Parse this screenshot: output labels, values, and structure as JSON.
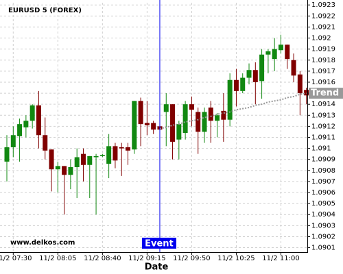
{
  "chart_data": {
    "type": "candlestick",
    "title": "EURUSD 5 (FOREX)",
    "watermark": "www.delkos.com",
    "x_label": "Date",
    "categories": [
      null,
      "11/2 07:30",
      null,
      null,
      null,
      null,
      null,
      null,
      "11/2 08:05",
      null,
      null,
      null,
      null,
      null,
      null,
      "11/2 08:40",
      null,
      null,
      null,
      null,
      null,
      null,
      "11/2 09:15",
      null,
      null,
      null,
      null,
      null,
      null,
      "11/2 09:50",
      null,
      null,
      null,
      null,
      null,
      null,
      "11/2 10:25",
      null,
      null,
      null,
      null,
      null,
      null,
      "11/2 11:00",
      null,
      null,
      null,
      null
    ],
    "open": [
      1.09088,
      1.09101,
      1.09111,
      1.09119,
      1.09125,
      1.09139,
      1.09112,
      1.09099,
      1.09081,
      1.09084,
      1.09076,
      1.09083,
      1.09095,
      1.09085,
      1.09092,
      1.09093,
      1.09086,
      1.09102,
      1.09101,
      1.09101,
      1.09099,
      1.09143,
      1.09123,
      1.09123,
      1.0912,
      1.09133,
      1.0914,
      1.09108,
      1.09114,
      1.0914,
      1.09133,
      1.09115,
      1.09137,
      1.09125,
      1.09134,
      1.09126,
      1.09162,
      1.09152,
      1.09164,
      1.09171,
      1.09161,
      1.09185,
      1.09181,
      1.09189,
      1.09194,
      1.0918,
      1.09167,
      1.09153
    ],
    "high": [
      1.09112,
      1.0912,
      1.09127,
      1.0913,
      1.0914,
      1.09152,
      1.09128,
      1.09099,
      1.09088,
      1.09084,
      1.0909,
      1.091,
      1.091,
      1.09093,
      1.09095,
      1.09095,
      1.09113,
      1.09105,
      1.09105,
      1.09105,
      1.09143,
      1.09146,
      1.09143,
      1.09125,
      1.0912,
      1.0915,
      1.0914,
      1.09125,
      1.09143,
      1.09147,
      1.09137,
      1.09137,
      1.09143,
      1.09132,
      1.0915,
      1.09168,
      1.09172,
      1.09168,
      1.09177,
      1.09178,
      1.0919,
      1.0919,
      1.092,
      1.09203,
      1.09194,
      1.09186,
      1.0917,
      1.09155
    ],
    "low": [
      1.0907,
      1.09092,
      1.09088,
      1.0911,
      1.09118,
      1.091,
      1.0909,
      1.09061,
      1.0906,
      1.0904,
      1.09063,
      1.09055,
      1.0907,
      1.09055,
      1.0904,
      1.09092,
      1.09073,
      1.09082,
      1.09075,
      1.09085,
      1.09095,
      1.09102,
      1.09112,
      1.09113,
      1.09117,
      1.09102,
      1.0909,
      1.0909,
      1.09108,
      1.0912,
      1.09095,
      1.09105,
      1.09105,
      1.0911,
      1.09106,
      1.0912,
      1.09138,
      1.0915,
      1.09158,
      1.0914,
      1.09145,
      1.09168,
      1.0917,
      1.09186,
      1.09172,
      1.0916,
      1.0913,
      1.0914
    ],
    "close": [
      1.09101,
      1.09112,
      1.09122,
      1.09125,
      1.09139,
      1.09112,
      1.09098,
      1.09081,
      1.09084,
      1.09076,
      1.09083,
      1.09092,
      1.09085,
      1.09093,
      1.09093,
      1.09094,
      1.09102,
      1.09089,
      1.091,
      1.09098,
      1.09143,
      1.09122,
      1.09121,
      1.09117,
      1.09117,
      1.0914,
      1.09106,
      1.09122,
      1.0914,
      1.09135,
      1.09115,
      1.09133,
      1.09125,
      1.0913,
      1.09126,
      1.09162,
      1.09152,
      1.09164,
      1.09171,
      1.0916,
      1.09185,
      1.09188,
      1.0919,
      1.09194,
      1.09181,
      1.09166,
      1.0915,
      1.09148
    ],
    "up_color": "#118811",
    "down_color": "#800000",
    "trend": {
      "label": "Trend",
      "color": "#999999",
      "values": [
        null,
        null,
        null,
        null,
        null,
        null,
        null,
        null,
        null,
        null,
        null,
        null,
        null,
        null,
        null,
        null,
        null,
        null,
        null,
        null,
        null,
        null,
        null,
        null,
        1.09118,
        1.09119,
        1.09121,
        1.09122,
        1.09124,
        1.09125,
        1.09126,
        1.09128,
        1.09129,
        1.09131,
        1.09132,
        1.09133,
        1.09135,
        1.09136,
        1.09137,
        1.09139,
        1.0914,
        1.09142,
        1.09143,
        1.09144,
        1.09146,
        1.09147,
        1.09149,
        1.0915
      ]
    },
    "event": {
      "label": "Event",
      "color": "#0000ee",
      "index": 24
    },
    "ylim": [
      1.09006,
      1.09232
    ],
    "yticks": [
      1.0901,
      1.0902,
      1.0903,
      1.0904,
      1.0905,
      1.0906,
      1.0907,
      1.0908,
      1.0909,
      1.091,
      1.0911,
      1.0912,
      1.0913,
      1.0914,
      1.0915,
      1.0916,
      1.0917,
      1.0918,
      1.0919,
      1.092,
      1.0921,
      1.0922,
      1.0923
    ],
    "grid": true
  }
}
